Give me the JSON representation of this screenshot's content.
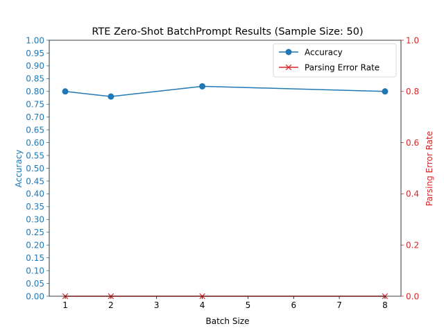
{
  "chart_data": {
    "type": "line",
    "title": "RTE Zero-Shot BatchPrompt Results (Sample Size: 50)",
    "xlabel": "Batch Size",
    "ylabel_left": "Accuracy",
    "ylabel_right": "Parsing Error Rate",
    "x": [
      1,
      2,
      4,
      8
    ],
    "x_ticks": [
      "1",
      "2",
      "3",
      "4",
      "5",
      "6",
      "7",
      "8"
    ],
    "x_range": [
      0.65,
      8.35
    ],
    "y_left_range": [
      0,
      1
    ],
    "y_left_ticks": [
      "0.00",
      "0.05",
      "0.10",
      "0.15",
      "0.20",
      "0.25",
      "0.30",
      "0.35",
      "0.40",
      "0.45",
      "0.50",
      "0.55",
      "0.60",
      "0.65",
      "0.70",
      "0.75",
      "0.80",
      "0.85",
      "0.90",
      "0.95",
      "1.00"
    ],
    "y_right_range": [
      0,
      1
    ],
    "y_right_ticks": [
      "0.0",
      "0.2",
      "0.4",
      "0.6",
      "0.8",
      "1.0"
    ],
    "grid": false,
    "legend_position": "top-right",
    "series": [
      {
        "name": "Accuracy",
        "axis": "left",
        "marker": "circle",
        "color": "#1f77b4",
        "values": [
          0.8,
          0.78,
          0.82,
          0.8
        ]
      },
      {
        "name": "Parsing Error Rate",
        "axis": "right",
        "marker": "x",
        "color": "#d62728",
        "values": [
          0.0,
          0.0,
          0.0,
          0.0
        ]
      }
    ]
  }
}
